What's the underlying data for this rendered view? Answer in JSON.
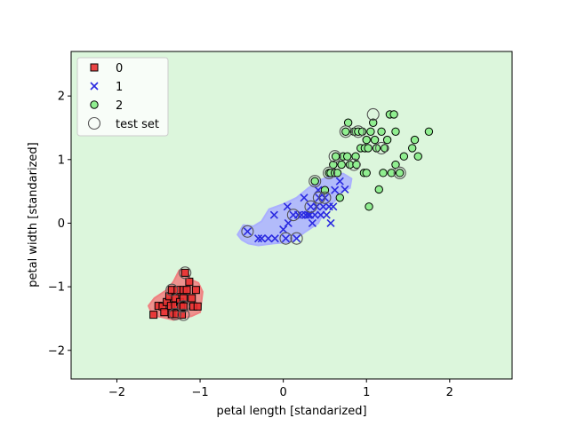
{
  "chart_data": {
    "type": "scatter",
    "title": "",
    "xlabel": "petal length [standarized]",
    "ylabel": "petal width [standarized]",
    "xlim": [
      -2.55,
      2.75
    ],
    "ylim": [
      -2.45,
      2.7
    ],
    "xticks": [
      -2,
      -1,
      0,
      1,
      2
    ],
    "yticks": [
      -2,
      -1,
      0,
      1,
      2
    ],
    "tick_labels": {
      "x": [
        "−2",
        "−1",
        "0",
        "1",
        "2"
      ],
      "y": [
        "−2",
        "−1",
        "0",
        "1",
        "2"
      ]
    },
    "grid": false,
    "legend_position": "top-left",
    "background_region_color": "#dcf6dc",
    "decision_regions": [
      {
        "class": "0",
        "color": "#f08080",
        "polygon": [
          [
            -1.62,
            -1.3
          ],
          [
            -1.55,
            -1.18
          ],
          [
            -1.4,
            -1.05
          ],
          [
            -1.32,
            -0.92
          ],
          [
            -1.25,
            -0.74
          ],
          [
            -1.16,
            -0.74
          ],
          [
            -1.12,
            -0.88
          ],
          [
            -1.02,
            -0.94
          ],
          [
            -0.97,
            -1.08
          ],
          [
            -1.0,
            -1.4
          ],
          [
            -1.1,
            -1.46
          ],
          [
            -1.2,
            -1.49
          ],
          [
            -1.32,
            -1.52
          ],
          [
            -1.45,
            -1.48
          ],
          [
            -1.57,
            -1.45
          ]
        ]
      },
      {
        "class": "1",
        "color": "#aab0ff",
        "polygon": [
          [
            -0.55,
            -0.18
          ],
          [
            -0.48,
            -0.03
          ],
          [
            -0.36,
            -0.05
          ],
          [
            -0.26,
            0.03
          ],
          [
            -0.17,
            0.22
          ],
          [
            0.0,
            0.3
          ],
          [
            0.16,
            0.4
          ],
          [
            0.3,
            0.55
          ],
          [
            0.45,
            0.68
          ],
          [
            0.58,
            0.75
          ],
          [
            0.72,
            0.78
          ],
          [
            0.82,
            0.7
          ],
          [
            0.8,
            0.55
          ],
          [
            0.7,
            0.5
          ],
          [
            0.62,
            0.35
          ],
          [
            0.5,
            0.2
          ],
          [
            0.42,
            0.0
          ],
          [
            0.25,
            -0.15
          ],
          [
            0.13,
            -0.27
          ],
          [
            0.05,
            -0.3
          ],
          [
            -0.12,
            -0.32
          ],
          [
            -0.3,
            -0.35
          ],
          [
            -0.42,
            -0.32
          ],
          [
            -0.5,
            -0.26
          ]
        ]
      }
    ],
    "series": [
      {
        "name": "0",
        "marker": "square",
        "color": "#e83030",
        "points": [
          [
            -1.56,
            -1.44
          ],
          [
            -1.5,
            -1.3
          ],
          [
            -1.45,
            -1.31
          ],
          [
            -1.43,
            -1.4
          ],
          [
            -1.4,
            -1.24
          ],
          [
            -1.37,
            -1.15
          ],
          [
            -1.35,
            -1.3
          ],
          [
            -1.34,
            -1.43
          ],
          [
            -1.34,
            -1.05
          ],
          [
            -1.3,
            -1.18
          ],
          [
            -1.3,
            -1.3
          ],
          [
            -1.28,
            -1.43
          ],
          [
            -1.27,
            -1.05
          ],
          [
            -1.24,
            -1.24
          ],
          [
            -1.23,
            -1.31
          ],
          [
            -1.22,
            -1.44
          ],
          [
            -1.2,
            -1.05
          ],
          [
            -1.2,
            -1.18
          ],
          [
            -1.2,
            -1.31
          ],
          [
            -1.18,
            -0.78
          ],
          [
            -1.16,
            -1.05
          ],
          [
            -1.13,
            -0.92
          ],
          [
            -1.1,
            -1.18
          ],
          [
            -1.08,
            -1.31
          ],
          [
            -1.05,
            -1.05
          ],
          [
            -1.03,
            -1.31
          ]
        ]
      },
      {
        "name": "1",
        "marker": "x",
        "color": "#2a2ae0",
        "points": [
          [
            -0.43,
            -0.13
          ],
          [
            -0.3,
            -0.24
          ],
          [
            -0.26,
            -0.24
          ],
          [
            -0.18,
            -0.24
          ],
          [
            -0.1,
            -0.24
          ],
          [
            -0.11,
            0.13
          ],
          [
            0.0,
            -0.1
          ],
          [
            0.03,
            -0.24
          ],
          [
            0.05,
            0.26
          ],
          [
            0.06,
            0.0
          ],
          [
            0.12,
            0.13
          ],
          [
            0.16,
            -0.24
          ],
          [
            0.18,
            0.13
          ],
          [
            0.22,
            0.13
          ],
          [
            0.25,
            0.4
          ],
          [
            0.27,
            0.13
          ],
          [
            0.3,
            0.13
          ],
          [
            0.32,
            0.13
          ],
          [
            0.33,
            0.26
          ],
          [
            0.35,
            0.0
          ],
          [
            0.38,
            0.13
          ],
          [
            0.4,
            0.26
          ],
          [
            0.42,
            0.52
          ],
          [
            0.43,
            0.4
          ],
          [
            0.45,
            0.13
          ],
          [
            0.48,
            0.26
          ],
          [
            0.5,
            0.4
          ],
          [
            0.52,
            0.13
          ],
          [
            0.55,
            0.26
          ],
          [
            0.57,
            0.0
          ],
          [
            0.6,
            0.26
          ],
          [
            0.62,
            0.52
          ],
          [
            0.68,
            0.66
          ],
          [
            0.74,
            0.53
          ]
        ]
      },
      {
        "name": "2",
        "marker": "circle",
        "color": "#90ee90",
        "points": [
          [
            0.38,
            0.66
          ],
          [
            0.5,
            0.52
          ],
          [
            0.55,
            0.79
          ],
          [
            0.57,
            0.79
          ],
          [
            0.6,
            0.92
          ],
          [
            0.62,
            0.79
          ],
          [
            0.63,
            1.05
          ],
          [
            0.65,
            0.79
          ],
          [
            0.68,
            0.4
          ],
          [
            0.7,
            0.92
          ],
          [
            0.72,
            1.05
          ],
          [
            0.75,
            1.44
          ],
          [
            0.77,
            1.05
          ],
          [
            0.78,
            1.58
          ],
          [
            0.8,
            0.92
          ],
          [
            0.85,
            1.44
          ],
          [
            0.87,
            1.05
          ],
          [
            0.88,
            0.92
          ],
          [
            0.9,
            1.44
          ],
          [
            0.93,
            1.18
          ],
          [
            0.95,
            1.44
          ],
          [
            0.97,
            0.79
          ],
          [
            0.98,
            1.18
          ],
          [
            1.0,
            1.31
          ],
          [
            1.0,
            0.79
          ],
          [
            1.02,
            1.18
          ],
          [
            1.03,
            0.26
          ],
          [
            1.05,
            1.44
          ],
          [
            1.08,
            1.58
          ],
          [
            1.1,
            1.31
          ],
          [
            1.12,
            1.18
          ],
          [
            1.15,
            0.53
          ],
          [
            1.18,
            1.44
          ],
          [
            1.2,
            0.79
          ],
          [
            1.22,
            1.18
          ],
          [
            1.25,
            1.31
          ],
          [
            1.28,
            1.71
          ],
          [
            1.3,
            0.79
          ],
          [
            1.33,
            1.71
          ],
          [
            1.35,
            0.92
          ],
          [
            1.35,
            1.44
          ],
          [
            1.4,
            0.79
          ],
          [
            1.45,
            1.05
          ],
          [
            1.55,
            1.18
          ],
          [
            1.58,
            1.31
          ],
          [
            1.62,
            1.05
          ],
          [
            1.75,
            1.44
          ]
        ]
      },
      {
        "name": "test set",
        "marker": "open-circle",
        "color": "#555555",
        "points": [
          [
            -1.34,
            -1.05
          ],
          [
            -1.3,
            -1.43
          ],
          [
            -1.2,
            -1.44
          ],
          [
            -1.18,
            -0.78
          ],
          [
            -1.2,
            -1.31
          ],
          [
            -0.43,
            -0.13
          ],
          [
            0.03,
            -0.24
          ],
          [
            0.12,
            0.13
          ],
          [
            0.16,
            -0.24
          ],
          [
            0.33,
            0.26
          ],
          [
            0.38,
            0.66
          ],
          [
            0.43,
            0.4
          ],
          [
            0.5,
            0.4
          ],
          [
            0.55,
            0.79
          ],
          [
            0.62,
            1.05
          ],
          [
            0.75,
            1.44
          ],
          [
            0.85,
            0.92
          ],
          [
            0.9,
            1.44
          ],
          [
            1.08,
            1.71
          ],
          [
            1.18,
            1.18
          ],
          [
            1.4,
            0.79
          ]
        ]
      }
    ]
  }
}
